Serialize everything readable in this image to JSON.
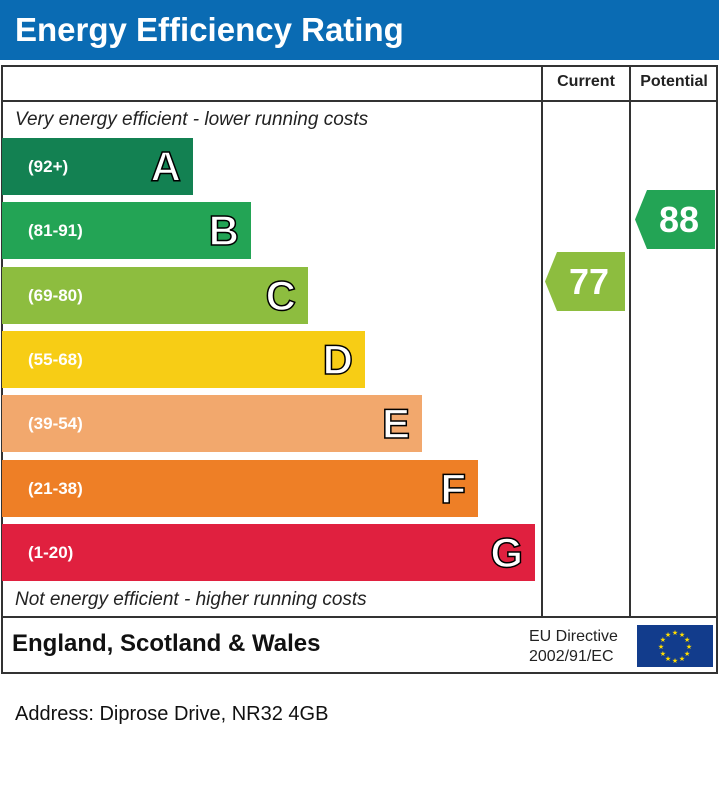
{
  "title": "Energy Efficiency Rating",
  "chart_data": {
    "type": "bar",
    "columns": [
      "Current",
      "Potential"
    ],
    "top_note": "Very energy efficient - lower running costs",
    "bottom_note": "Not energy efficient - higher running costs",
    "bands": [
      {
        "letter": "A",
        "range": "(92+)",
        "color": "#138152"
      },
      {
        "letter": "B",
        "range": "(81-91)",
        "color": "#23a455"
      },
      {
        "letter": "C",
        "range": "(69-80)",
        "color": "#8dbd3f"
      },
      {
        "letter": "D",
        "range": "(55-68)",
        "color": "#f7cd15"
      },
      {
        "letter": "E",
        "range": "(39-54)",
        "color": "#f2a86d"
      },
      {
        "letter": "F",
        "range": "(21-38)",
        "color": "#ee7f26"
      },
      {
        "letter": "G",
        "range": "(1-20)",
        "color": "#e0203f"
      }
    ],
    "current": {
      "value": "77",
      "band": "C",
      "color": "#8dbd3f"
    },
    "potential": {
      "value": "88",
      "band": "B",
      "color": "#23a455"
    }
  },
  "footer": {
    "region": "England, Scotland & Wales",
    "directive_line1": "EU Directive",
    "directive_line2": "2002/91/EC"
  },
  "address": "Address: Diprose Drive, NR32 4GB"
}
